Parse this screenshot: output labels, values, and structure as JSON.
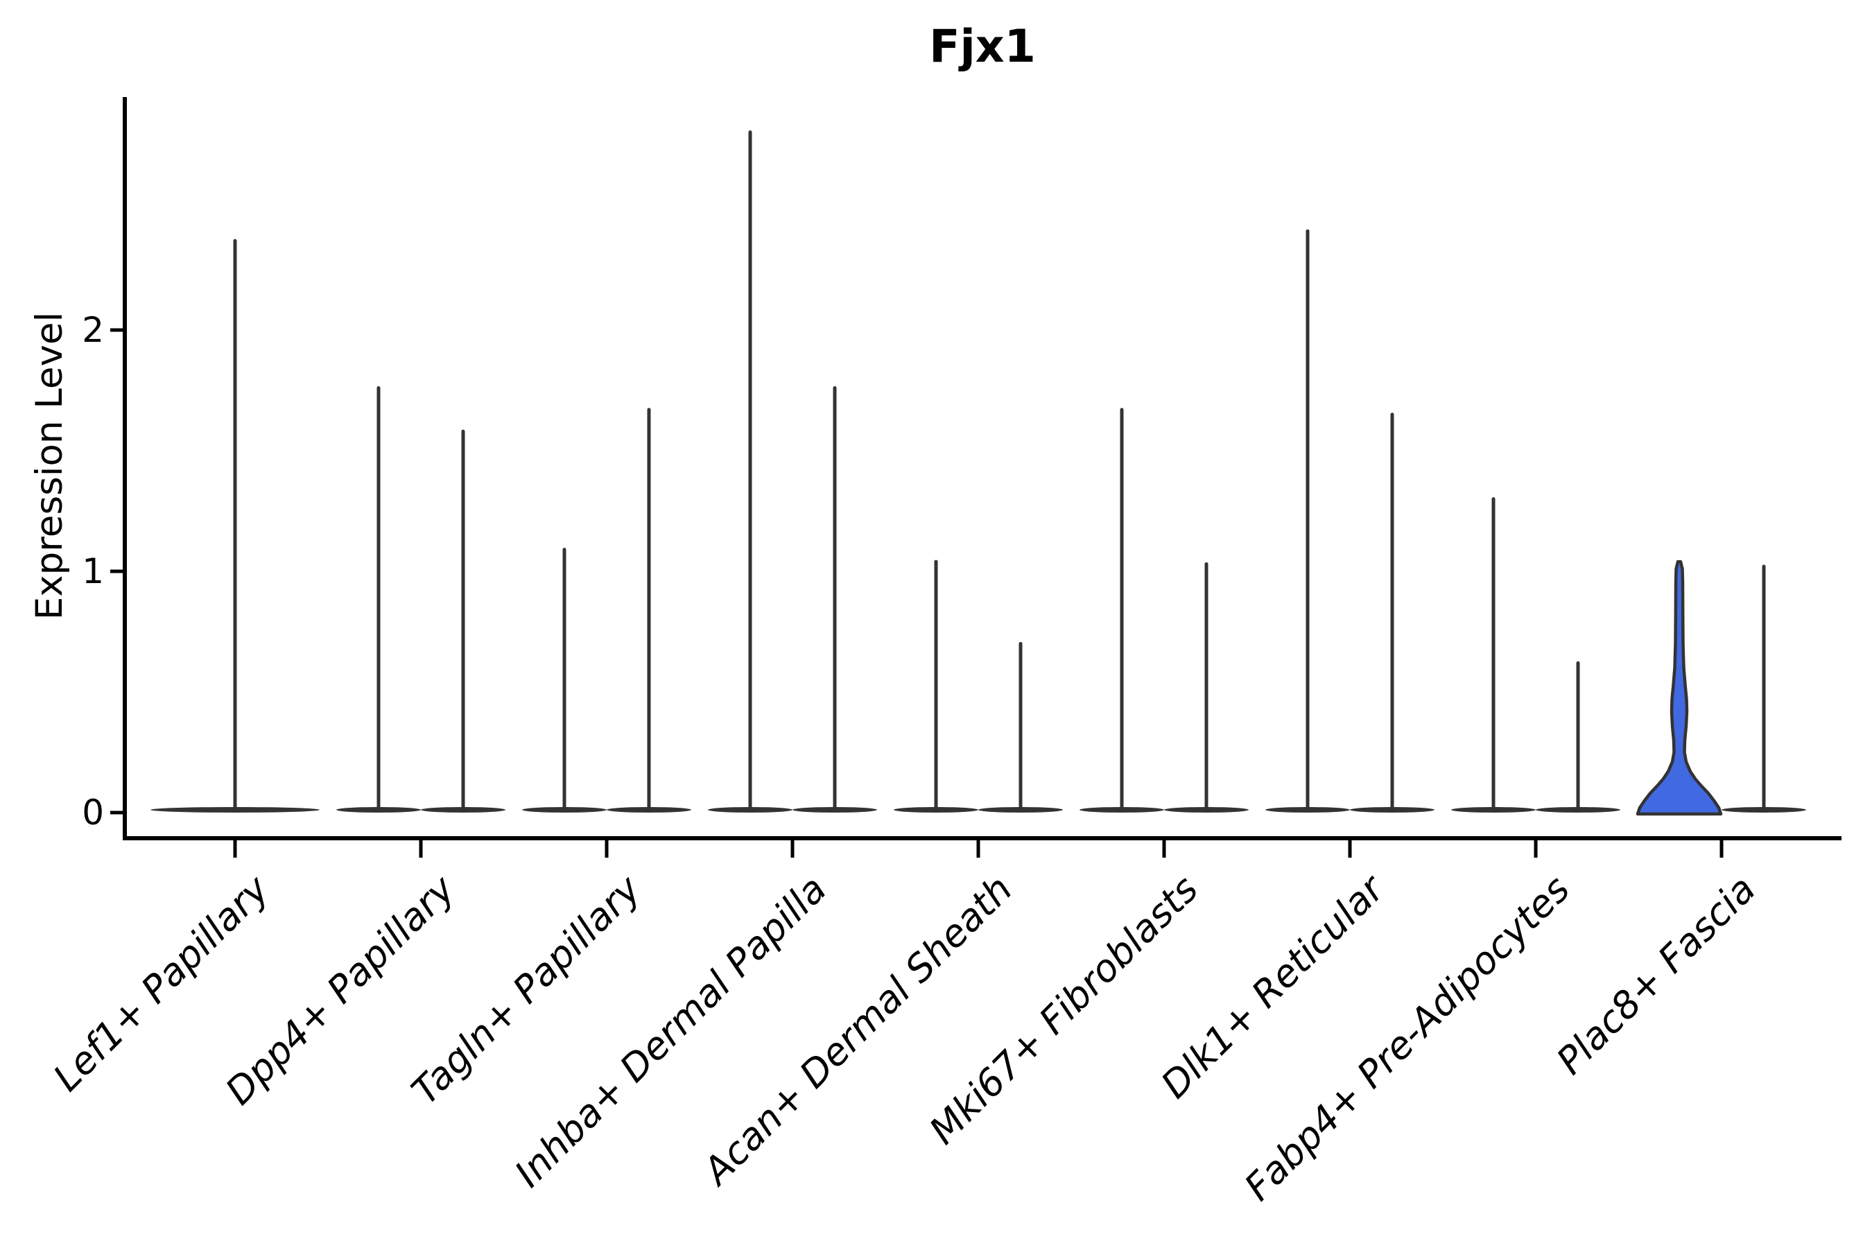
{
  "figure": {
    "background_color": "#ffffff"
  },
  "chart_data": {
    "type": "violin",
    "title": "Fjx1",
    "xlabel": "",
    "ylabel": "Expression Level",
    "yticks": [
      0,
      1,
      2
    ],
    "ylim": [
      0,
      2.97
    ],
    "grid": false,
    "legend": null,
    "axis_color": "#000000",
    "outline_color": "#333333",
    "highlight_fill": "#4169E1",
    "x_label_rotation_deg": 45,
    "categories": [
      {
        "label": "Lef1+ Papillary",
        "violins": [
          {
            "position": "center",
            "style": "spike",
            "max_expression": 2.37
          }
        ]
      },
      {
        "label": "Dpp4+ Papillary",
        "violins": [
          {
            "position": "left",
            "style": "spike",
            "max_expression": 1.76
          },
          {
            "position": "right",
            "style": "spike",
            "max_expression": 1.58
          }
        ]
      },
      {
        "label": "Tagln+ Papillary",
        "violins": [
          {
            "position": "left",
            "style": "spike",
            "max_expression": 1.09
          },
          {
            "position": "right",
            "style": "spike",
            "max_expression": 1.67
          }
        ]
      },
      {
        "label": "Inhba+ Dermal Papilla",
        "violins": [
          {
            "position": "left",
            "style": "spike",
            "max_expression": 2.82
          },
          {
            "position": "right",
            "style": "spike",
            "max_expression": 1.76
          }
        ]
      },
      {
        "label": "Acan+ Dermal Sheath",
        "violins": [
          {
            "position": "left",
            "style": "spike",
            "max_expression": 1.04
          },
          {
            "position": "right",
            "style": "spike",
            "max_expression": 0.7
          }
        ]
      },
      {
        "label": "Mki67+ Fibroblasts",
        "violins": [
          {
            "position": "left",
            "style": "spike",
            "max_expression": 1.67
          },
          {
            "position": "right",
            "style": "spike",
            "max_expression": 1.03
          }
        ]
      },
      {
        "label": "Dlk1+ Reticular",
        "violins": [
          {
            "position": "left",
            "style": "spike",
            "max_expression": 2.41
          },
          {
            "position": "right",
            "style": "spike",
            "max_expression": 1.65
          }
        ]
      },
      {
        "label": "Fabp4+ Pre-Adipocytes",
        "violins": [
          {
            "position": "left",
            "style": "spike",
            "max_expression": 1.3
          },
          {
            "position": "right",
            "style": "spike",
            "max_expression": 0.62
          }
        ]
      },
      {
        "label": "Plac8+ Fascia",
        "violins": [
          {
            "position": "left",
            "style": "filled_density",
            "max_expression": 1.04,
            "fill_color": "#4169E1",
            "profile_value_halfwidth": [
              [
                0.0,
                60
              ],
              [
                0.02,
                57
              ],
              [
                0.05,
                50
              ],
              [
                0.08,
                42
              ],
              [
                0.11,
                32
              ],
              [
                0.14,
                23
              ],
              [
                0.17,
                16
              ],
              [
                0.21,
                10
              ],
              [
                0.25,
                7.5
              ],
              [
                0.3,
                8
              ],
              [
                0.36,
                10
              ],
              [
                0.42,
                11
              ],
              [
                0.47,
                10.5
              ],
              [
                0.53,
                8.5
              ],
              [
                0.6,
                6.5
              ],
              [
                0.7,
                5.5
              ],
              [
                0.82,
                5.2
              ],
              [
                0.95,
                5.0
              ],
              [
                1.01,
                4.5
              ],
              [
                1.04,
                2.0
              ]
            ]
          },
          {
            "position": "right",
            "style": "spike",
            "max_expression": 1.02
          }
        ]
      }
    ]
  }
}
